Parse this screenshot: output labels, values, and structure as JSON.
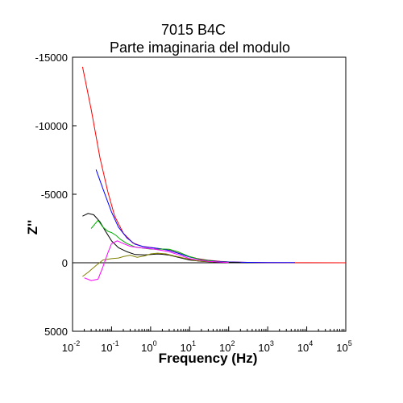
{
  "chart_data": {
    "type": "line",
    "title": "7015 B4C",
    "subtitle": "Parte imaginaria del modulo",
    "xlabel": "Frequency (Hz)",
    "ylabel": "Z''",
    "x_scale": "log",
    "xlim": [
      0.01,
      100000
    ],
    "ylim": [
      5000,
      -15000
    ],
    "y_axis_inverted": true,
    "grid": false,
    "legend": "none",
    "x_ticks": [
      {
        "base": "10",
        "exp": "-2",
        "value": 0.01
      },
      {
        "base": "10",
        "exp": "-1",
        "value": 0.1
      },
      {
        "base": "10",
        "exp": "0",
        "value": 1
      },
      {
        "base": "10",
        "exp": "1",
        "value": 10
      },
      {
        "base": "10",
        "exp": "2",
        "value": 100
      },
      {
        "base": "10",
        "exp": "3",
        "value": 1000
      },
      {
        "base": "10",
        "exp": "4",
        "value": 10000
      },
      {
        "base": "10",
        "exp": "5",
        "value": 100000
      }
    ],
    "y_ticks": [
      {
        "label": "-15000",
        "value": -15000
      },
      {
        "label": "-10000",
        "value": -10000
      },
      {
        "label": "-5000",
        "value": -5000
      },
      {
        "label": "0",
        "value": 0
      },
      {
        "label": "5000",
        "value": 5000
      }
    ],
    "series": [
      {
        "color": "#ff0000",
        "x": [
          0.018,
          0.03,
          0.05,
          0.08,
          0.12,
          0.2,
          0.35,
          0.6,
          1.0,
          2.0,
          3.0,
          5.0,
          8.0,
          15,
          30,
          60,
          100,
          300,
          1000,
          3000,
          10000,
          100000
        ],
        "y": [
          -14300,
          -11200,
          -7700,
          -5200,
          -3400,
          -2150,
          -1450,
          -1200,
          -1120,
          -1000,
          -920,
          -720,
          -520,
          -320,
          -180,
          -100,
          -60,
          -30,
          -15,
          -8,
          -4,
          0
        ]
      },
      {
        "color": "#0000ff",
        "x": [
          0.04,
          0.06,
          0.1,
          0.15,
          0.25,
          0.4,
          0.7,
          1.2,
          2.0,
          3.0,
          5.0,
          10,
          20,
          50,
          100,
          300,
          1000,
          3000,
          5000
        ],
        "y": [
          -6800,
          -5400,
          -3700,
          -2600,
          -1800,
          -1350,
          -1150,
          -1080,
          -1000,
          -900,
          -700,
          -420,
          -230,
          -100,
          -60,
          -30,
          -20,
          -15,
          -10
        ]
      },
      {
        "color": "#000000",
        "x": [
          0.018,
          0.025,
          0.035,
          0.05,
          0.07,
          0.1,
          0.15,
          0.25,
          0.4,
          0.7,
          1.0,
          1.5,
          2.0,
          3.0,
          5.0,
          10,
          20,
          50,
          100,
          200
        ],
        "y": [
          -3400,
          -3600,
          -3500,
          -3000,
          -2300,
          -1600,
          -1100,
          -800,
          -600,
          -570,
          -600,
          -640,
          -620,
          -560,
          -400,
          -200,
          -100,
          -50,
          -30,
          -15
        ]
      },
      {
        "color": "#00b000",
        "x": [
          0.03,
          0.045,
          0.06,
          0.08,
          0.1,
          0.13,
          0.17,
          0.25,
          0.4,
          0.7,
          1.0,
          1.5,
          2.2,
          3.0,
          5.0,
          10,
          20,
          50,
          100
        ],
        "y": [
          -2500,
          -3100,
          -2600,
          -2300,
          -2200,
          -2000,
          -1700,
          -1400,
          -1150,
          -1050,
          -1000,
          -980,
          -1000,
          -980,
          -800,
          -450,
          -220,
          -80,
          -30
        ]
      },
      {
        "color": "#808000",
        "x": [
          0.018,
          0.025,
          0.04,
          0.06,
          0.1,
          0.15,
          0.2,
          0.3,
          0.45,
          0.7,
          1.0,
          1.5,
          2.5,
          4.0,
          7.0,
          15,
          40
        ],
        "y": [
          1000,
          700,
          200,
          -200,
          -300,
          -350,
          -450,
          -550,
          -400,
          -500,
          -650,
          -700,
          -650,
          -500,
          -350,
          -150,
          -50
        ]
      },
      {
        "color": "#ff00ff",
        "x": [
          0.02,
          0.03,
          0.045,
          0.06,
          0.08,
          0.1,
          0.14,
          0.2,
          0.3,
          0.5,
          0.8,
          1.2,
          2.0,
          3.0,
          5.0,
          10,
          30,
          100
        ],
        "y": [
          1100,
          1300,
          1200,
          300,
          -700,
          -1400,
          -1600,
          -1400,
          -1200,
          -1100,
          -1050,
          -1000,
          -900,
          -800,
          -600,
          -300,
          -100,
          -20
        ]
      }
    ]
  }
}
